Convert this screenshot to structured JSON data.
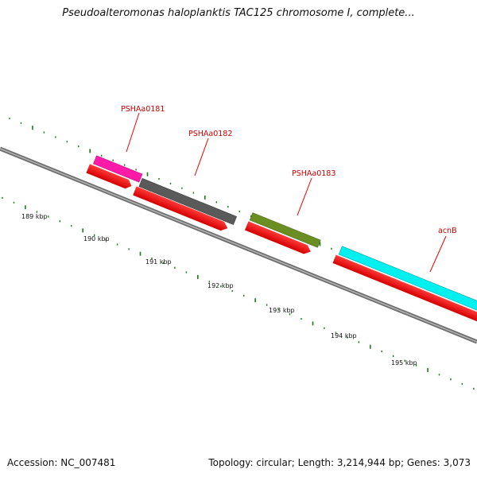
{
  "title": "Pseudoalteromonas haloplanktis TAC125 chromosome I, complete...",
  "footer": {
    "accession": "Accession: NC_007481",
    "summary": "Topology: circular; Length: 3,214,944 bp; Genes: 3,073"
  },
  "gene_labels": [
    "PSHAa0181",
    "PSHAa0182",
    "PSHAa0183",
    "acnB"
  ],
  "tick_labels": [
    "189 kbp",
    "190 kbp",
    "191 kbp",
    "192 kbp",
    "193 kbp",
    "194 kbp",
    "195 kbp"
  ],
  "colors": {
    "backbone": "#8a8a8a",
    "cds": "#ff0000",
    "tick": "#1a7a1a",
    "label_red": "#cc0000",
    "blue": "#0000ee",
    "steel_blue": "#4a7bbf",
    "olive": "#6b8e23",
    "magenta": "#ff1aa8",
    "dark_gray": "#5a5a5a",
    "cyan": "#00f0f0"
  }
}
